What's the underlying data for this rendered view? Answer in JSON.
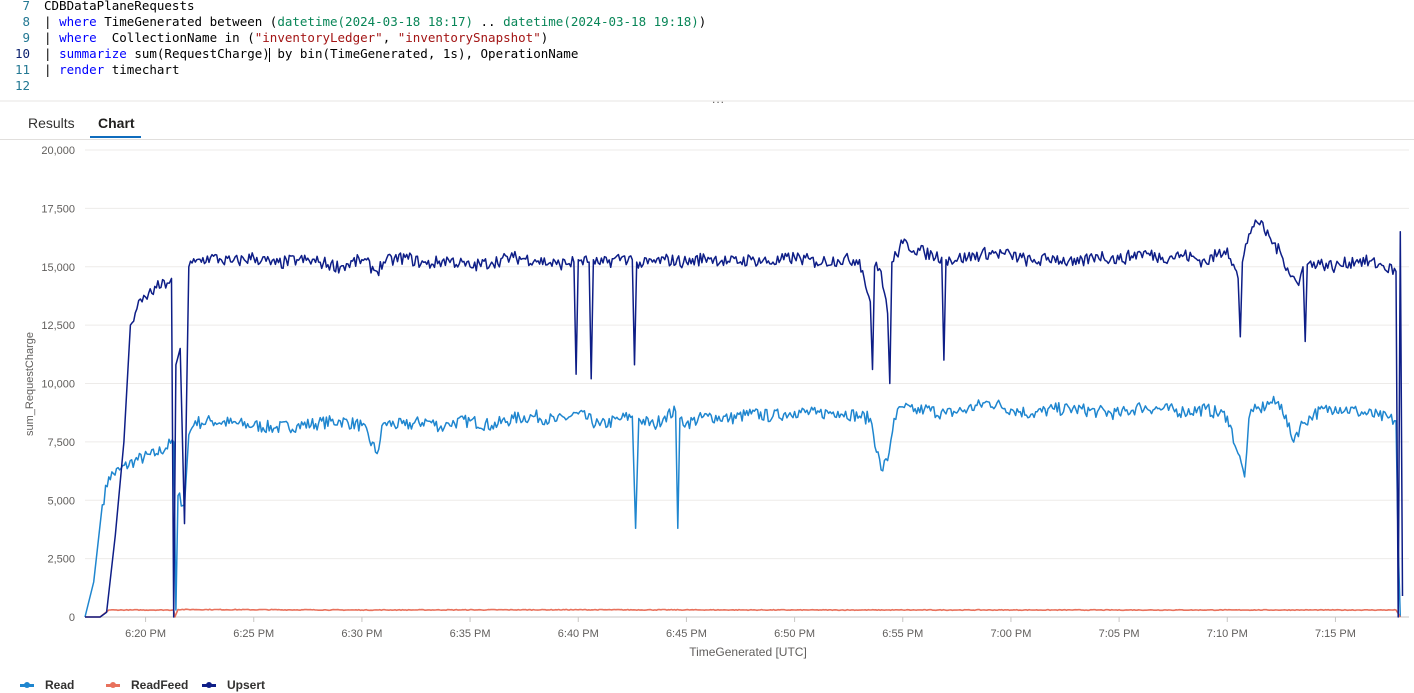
{
  "editor": {
    "lines": [
      {
        "num": "7",
        "segments": [
          {
            "t": "CDBDataPlaneRequests",
            "c": ""
          }
        ]
      },
      {
        "num": "8",
        "segments": [
          {
            "t": "| ",
            "c": ""
          },
          {
            "t": "where",
            "c": "kw"
          },
          {
            "t": " TimeGenerated between (",
            "c": ""
          },
          {
            "t": "datetime(2024-03-18 18:17)",
            "c": "fn"
          },
          {
            "t": " .. ",
            "c": ""
          },
          {
            "t": "datetime(2024-03-18 19:18)",
            "c": "fn"
          },
          {
            "t": ")",
            "c": ""
          }
        ]
      },
      {
        "num": "9",
        "segments": [
          {
            "t": "| ",
            "c": ""
          },
          {
            "t": "where",
            "c": "kw"
          },
          {
            "t": "  CollectionName in (",
            "c": ""
          },
          {
            "t": "\"inventoryLedger\"",
            "c": "str"
          },
          {
            "t": ", ",
            "c": ""
          },
          {
            "t": "\"inventorySnapshot\"",
            "c": "str"
          },
          {
            "t": ")",
            "c": ""
          }
        ]
      },
      {
        "num": "10",
        "segments": [
          {
            "t": "| ",
            "c": ""
          },
          {
            "t": "summarize",
            "c": "kw"
          },
          {
            "t": " sum(RequestCharge)",
            "c": ""
          },
          {
            "t": " by bin(TimeGenerated, 1s), OperationName",
            "c": ""
          }
        ]
      },
      {
        "num": "11",
        "segments": [
          {
            "t": "| ",
            "c": ""
          },
          {
            "t": "render",
            "c": "kw"
          },
          {
            "t": " timechart",
            "c": ""
          }
        ]
      },
      {
        "num": "12",
        "segments": []
      }
    ],
    "active_line": "10"
  },
  "splitter_handle": "...",
  "tabs": [
    {
      "label": "Results",
      "active": false
    },
    {
      "label": "Chart",
      "active": true
    }
  ],
  "chart_data": {
    "type": "line",
    "xlabel": "TimeGenerated [UTC]",
    "ylabel": "sum_RequestCharge",
    "ylim": [
      0,
      20000
    ],
    "y_ticks": [
      "0",
      "2,500",
      "5,000",
      "7,500",
      "10,000",
      "12,500",
      "15,000",
      "17,500",
      "20,000"
    ],
    "x_ticks": [
      "6:20 PM",
      "6:25 PM",
      "6:30 PM",
      "6:35 PM",
      "6:40 PM",
      "6:45 PM",
      "6:50 PM",
      "6:55 PM",
      "7:00 PM",
      "7:05 PM",
      "7:10 PM",
      "7:15 PM"
    ],
    "x_range_minutes": [
      17.2,
      78.4
    ],
    "grid": true,
    "legend_position": "bottom-left",
    "series": [
      {
        "name": "Read",
        "color": "#1f86cf",
        "x": [
          17.2,
          17.6,
          18.0,
          18.3,
          18.8,
          19.5,
          20.5,
          21.3,
          21.4,
          21.5,
          21.8,
          22.0,
          22.3,
          22.6,
          23.0,
          24.0,
          25.0,
          26.0,
          27.0,
          28.0,
          29.0,
          30.0,
          30.7,
          31.0,
          32.0,
          33.0,
          33.8,
          34.0,
          35.0,
          36.0,
          37.0,
          38.0,
          39.0,
          40.0,
          41.0,
          42.0,
          42.5,
          42.65,
          42.8,
          43.5,
          44.0,
          44.5,
          44.6,
          44.7,
          45.0,
          46.0,
          47.0,
          48.0,
          49.0,
          50.0,
          51.0,
          52.0,
          53.0,
          53.5,
          54.0,
          54.3,
          54.6,
          55.0,
          55.5,
          56.0,
          57.0,
          58.0,
          59.0,
          60.0,
          61.0,
          62.0,
          63.0,
          64.0,
          65.0,
          66.0,
          67.0,
          68.0,
          69.0,
          70.0,
          70.5,
          70.8,
          71.0,
          71.2,
          71.5,
          72.0,
          72.5,
          73.0,
          73.5,
          74.0,
          75.0,
          76.0,
          77.0,
          77.8,
          77.9,
          78.0
        ],
        "y": [
          0,
          1500,
          4800,
          6000,
          6300,
          6700,
          7000,
          7500,
          300,
          5200,
          4800,
          7800,
          8400,
          8300,
          8400,
          8300,
          8200,
          8100,
          8200,
          8300,
          8400,
          8200,
          7000,
          8300,
          8200,
          8400,
          8100,
          8300,
          8400,
          8200,
          8500,
          8600,
          8400,
          8700,
          8200,
          8500,
          8600,
          3800,
          8500,
          8200,
          8600,
          8800,
          3800,
          8500,
          8300,
          8600,
          8500,
          8700,
          8600,
          8800,
          8700,
          8800,
          8600,
          8500,
          6300,
          6700,
          8500,
          9000,
          8800,
          8900,
          8700,
          8900,
          9200,
          8900,
          8700,
          8900,
          8900,
          8800,
          8700,
          9000,
          8900,
          8800,
          8900,
          8600,
          7000,
          6000,
          8500,
          8800,
          8900,
          9200,
          9100,
          7600,
          8300,
          8700,
          9000,
          8800,
          8600,
          8400,
          3000,
          0
        ]
      },
      {
        "name": "ReadFeed",
        "color": "#e8715c",
        "x": [
          17.2,
          17.9,
          18.3,
          21.3,
          21.35,
          21.5,
          30.0,
          40.0,
          50.0,
          55.0,
          60.0,
          70.0,
          77.8,
          78.0
        ],
        "y": [
          0,
          0,
          300,
          300,
          0,
          320,
          300,
          310,
          300,
          300,
          300,
          300,
          300,
          0
        ]
      },
      {
        "name": "Upsert",
        "color": "#0e1e87",
        "x": [
          17.2,
          17.9,
          18.2,
          18.6,
          19.0,
          19.3,
          19.6,
          20.0,
          20.5,
          21.0,
          21.2,
          21.3,
          21.4,
          21.6,
          21.8,
          22.0,
          22.3,
          23.0,
          23.5,
          24.0,
          25.0,
          26.0,
          27.0,
          28.0,
          29.0,
          30.0,
          30.7,
          31.0,
          32.0,
          33.0,
          34.0,
          35.0,
          36.0,
          37.0,
          38.0,
          39.0,
          39.8,
          39.9,
          40.0,
          40.5,
          40.6,
          40.7,
          41.0,
          42.0,
          42.5,
          42.6,
          42.7,
          43.0,
          44.0,
          45.0,
          46.0,
          47.0,
          48.0,
          49.0,
          50.0,
          51.0,
          52.0,
          53.0,
          53.5,
          53.6,
          53.7,
          54.0,
          54.3,
          54.4,
          54.5,
          55.0,
          56.0,
          56.8,
          56.9,
          57.0,
          58.0,
          59.0,
          60.0,
          61.0,
          62.0,
          63.0,
          64.0,
          65.0,
          66.0,
          67.0,
          68.0,
          69.0,
          70.0,
          70.5,
          70.6,
          70.7,
          71.0,
          71.3,
          71.5,
          72.0,
          72.5,
          73.0,
          73.3,
          73.5,
          73.6,
          73.7,
          74.0,
          75.0,
          76.0,
          77.0,
          77.8,
          77.9,
          78.0,
          78.1
        ],
        "y": [
          0,
          0,
          200,
          3500,
          7500,
          12500,
          13200,
          13700,
          14100,
          14300,
          14500,
          0,
          10800,
          11500,
          4000,
          15000,
          15200,
          15400,
          15300,
          15200,
          15400,
          15100,
          15300,
          15200,
          15000,
          15300,
          14800,
          15200,
          15400,
          15100,
          15300,
          15000,
          15200,
          15400,
          15300,
          15100,
          15200,
          10400,
          15300,
          15200,
          10200,
          15300,
          15100,
          15400,
          15300,
          10800,
          15200,
          15100,
          15300,
          15200,
          15400,
          15200,
          15300,
          15200,
          15400,
          15200,
          15300,
          15300,
          13500,
          10600,
          15000,
          14800,
          13000,
          10000,
          15200,
          16000,
          15600,
          15400,
          11000,
          15300,
          15400,
          15600,
          15500,
          15200,
          15400,
          15100,
          15500,
          15300,
          15600,
          15400,
          15500,
          15200,
          15800,
          14500,
          12000,
          15200,
          16400,
          17000,
          16800,
          16200,
          15500,
          14600,
          14200,
          15000,
          11800,
          15100,
          15200,
          15000,
          15300,
          15100,
          14800,
          0,
          16500,
          900
        ]
      }
    ]
  }
}
